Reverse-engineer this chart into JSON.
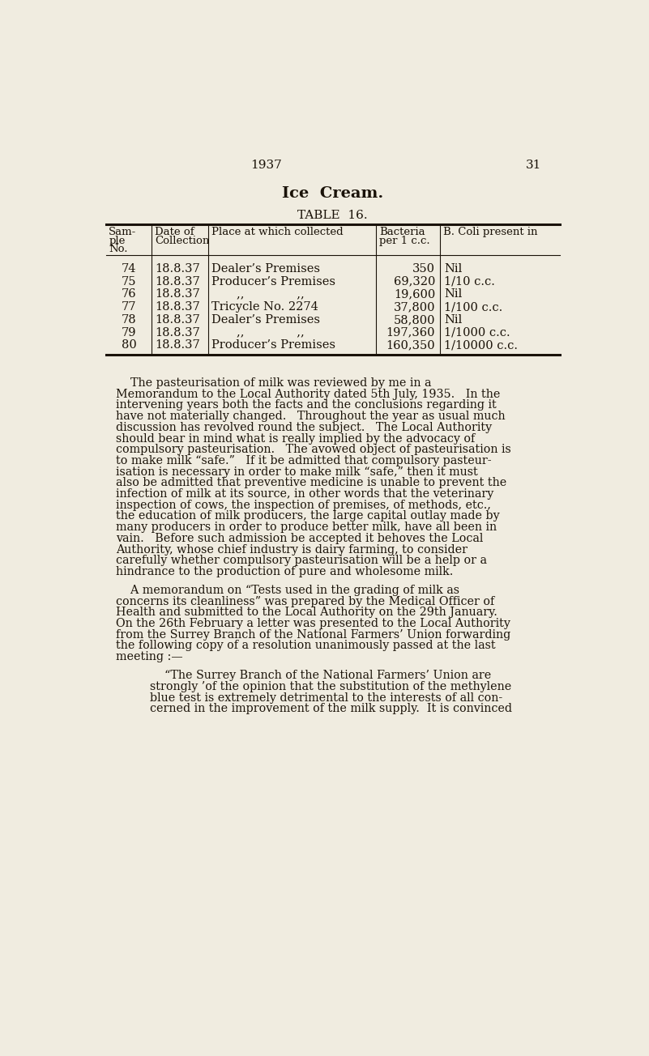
{
  "bg_color": "#f0ece0",
  "text_color": "#1a1208",
  "page_number": "31",
  "year": "1937",
  "title": "Ice  Cream.",
  "table_title": "TABLE  16.",
  "col_headers_line1": [
    "Sam-",
    "Date of",
    "Place at which collected",
    "Bacteria",
    "B. Coli present in"
  ],
  "col_headers_line2": [
    "ple",
    "Collection",
    "",
    "per 1 c.c.",
    ""
  ],
  "col_headers_line3": [
    "No.",
    "",
    "",
    "",
    ""
  ],
  "table_rows": [
    [
      "74",
      "18.8.37",
      "Dealer’s Premises",
      "350",
      "Nil"
    ],
    [
      "75",
      "18.8.37",
      "Producer’s Premises",
      "69,320",
      "1/10 c.c."
    ],
    [
      "76",
      "18.8.37",
      ",,              ,,",
      "19,600",
      "Nil"
    ],
    [
      "77",
      "18.8.37",
      "Tricycle No. 2274",
      "37,800",
      "1/100 c.c."
    ],
    [
      "78",
      "18.8.37",
      "Dealer’s Premises",
      "58,800",
      "Nil"
    ],
    [
      "79",
      "18.8.37",
      ",,              ,,",
      "197,360",
      "1/1000 c.c."
    ],
    [
      "80",
      "18.8.37",
      "Producer’s Premises",
      "160,350",
      "1/10000 c.c."
    ]
  ],
  "para1_lines": [
    "    The pasteurisation of milk was reviewed by me in a",
    "Memorandum to the Local Authority dated 5th July, 1935.   In the",
    "intervening years both the facts and the conclusions regarding it",
    "have not materially changed.   Throughout the year as usual much",
    "discussion has revolved round the subject.   The Local Authority",
    "should bear in mind what is really implied by the advocacy of",
    "compulsory pasteurisation.   The avowed object of pasteurisation is",
    "to make milk “safe.”   If it be admitted that compulsory pasteur-",
    "isation is necessary in order to make milk “safe,” then it must",
    "also be admitted that preventive medicine is unable to prevent the",
    "infection of milk at its source, in other words that the veterinary",
    "inspection of cows, the inspection of premises, of methods, etc.,",
    "the education of milk producers, the large capital outlay made by",
    "many producers in order to produce better milk, have all been in",
    "vain.   Before such admission be accepted it behoves the Local",
    "Authority, whose chief industry is dairy farming, to consider",
    "carefully whether compulsory pasteurisation will be a help or a",
    "hindrance to the production of pure and wholesome milk."
  ],
  "para2_lines": [
    "    A memorandum on “Tests used in the grading of milk as",
    "concerns its cleanliness” was prepared by the Medical Officer of",
    "Health and submitted to the Local Authority on the 29th January.",
    "On the 26th February a letter was presented to the Local Authority",
    "from the Surrey Branch of the National Farmers’ Union forwarding",
    "the following copy of a resolution unanimously passed at the last",
    "meeting :—"
  ],
  "para3_lines": [
    "    “The Surrey Branch of the National Farmers’ Union are",
    "strongly ’of the opinion that the substitution of the methylene",
    "blue test is extremely detrimental to the interests of all con-",
    "cerned in the improvement of the milk supply.  It is convinced"
  ]
}
